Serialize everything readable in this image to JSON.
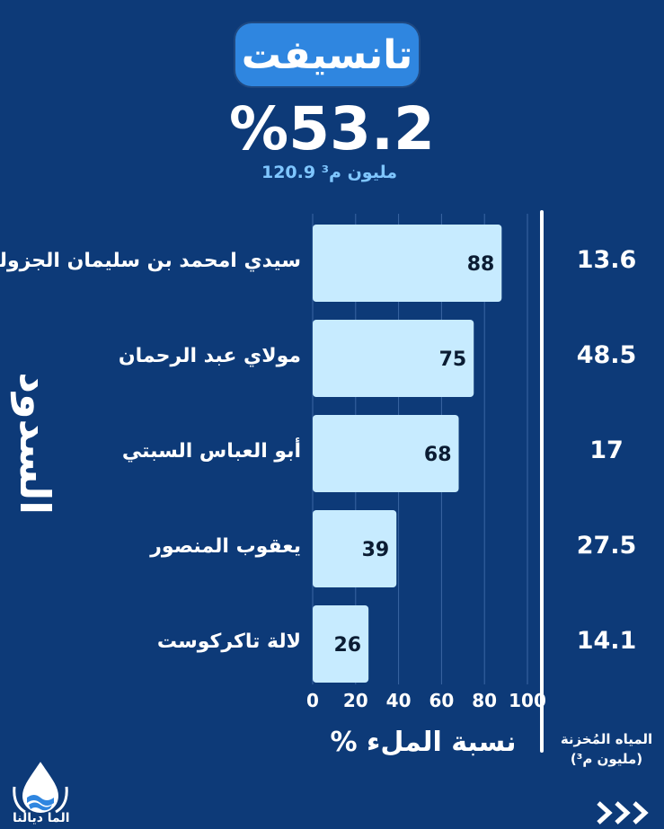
{
  "header": {
    "title": "تانسيفت",
    "percent": "%53.2",
    "volume_value": "120.9",
    "volume_unit": "مليون م³"
  },
  "side_title": "السدود",
  "stored_header": [
    "المياه المُخزنة",
    "(مليون م³)"
  ],
  "logo_text": "الما ديالنا",
  "colors": {
    "background": "#0d3a78",
    "bar_fill": "#c7ebff",
    "accent_pill": "#2f86e0",
    "subtitle": "#7fc6ff"
  },
  "icons": [
    "water-drop-hands-logo-icon",
    "chevron-right-icon"
  ],
  "chart_data": {
    "type": "bar",
    "orientation": "horizontal",
    "categories": [
      "سيدي امحمد بن سليمان الجزولي",
      "مولاي عبد الرحمان",
      "أبو العباس السبتي",
      "يعقوب المنصور",
      "لالة تاكركوست"
    ],
    "values": [
      88,
      75,
      68,
      39,
      26
    ],
    "stored_water": [
      "13.6",
      "48.5",
      "17",
      "27.5",
      "14.1"
    ],
    "xlabel": "نسبة الملء %",
    "xlim": [
      0,
      100
    ],
    "xticks": [
      "0",
      "20",
      "40",
      "60",
      "80",
      "100"
    ],
    "grid": true
  }
}
